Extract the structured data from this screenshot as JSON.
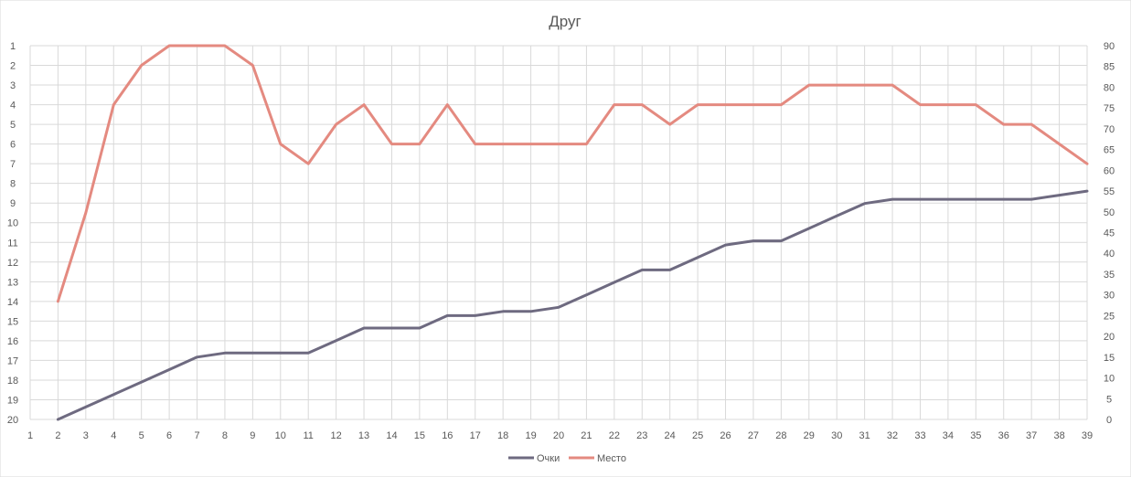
{
  "chart_data": {
    "type": "line",
    "title": "Друг",
    "x": [
      2,
      3,
      4,
      5,
      6,
      7,
      8,
      9,
      10,
      11,
      12,
      13,
      14,
      15,
      16,
      17,
      18,
      19,
      20,
      21,
      22,
      23,
      24,
      25,
      26,
      27,
      28,
      29,
      30,
      31,
      32,
      33,
      34,
      35,
      36,
      37,
      38,
      39
    ],
    "x_ticks": [
      "1",
      "2",
      "3",
      "4",
      "5",
      "6",
      "7",
      "8",
      "9",
      "10",
      "11",
      "12",
      "13",
      "14",
      "15",
      "16",
      "17",
      "18",
      "19",
      "20",
      "21",
      "22",
      "23",
      "24",
      "25",
      "26",
      "27",
      "28",
      "29",
      "30",
      "31",
      "32",
      "33",
      "34",
      "35",
      "36",
      "37",
      "38",
      "39"
    ],
    "xlim": [
      1,
      39
    ],
    "left_axis": {
      "ticks": [
        "1",
        "2",
        "3",
        "4",
        "5",
        "6",
        "7",
        "8",
        "9",
        "10",
        "11",
        "12",
        "13",
        "14",
        "15",
        "16",
        "17",
        "18",
        "19",
        "20"
      ],
      "ylim": [
        1,
        20
      ],
      "reversed": true
    },
    "right_axis": {
      "ticks": [
        "0",
        "5",
        "10",
        "15",
        "20",
        "25",
        "30",
        "35",
        "40",
        "45",
        "50",
        "55",
        "60",
        "65",
        "70",
        "75",
        "80",
        "85",
        "90"
      ],
      "ylim": [
        0,
        90
      ]
    },
    "series": [
      {
        "name": "Очки",
        "axis": "right",
        "color": "#6e6a80",
        "values": [
          0,
          3,
          6,
          9,
          12,
          15,
          16,
          16,
          16,
          16,
          19,
          22,
          22,
          22,
          25,
          25,
          26,
          26,
          27,
          30,
          33,
          36,
          36,
          39,
          42,
          43,
          43,
          46,
          49,
          52,
          53,
          53,
          53,
          53,
          53,
          53,
          54,
          55
        ]
      },
      {
        "name": "Место",
        "axis": "left",
        "color": "#e48a80",
        "values": [
          14,
          9.5,
          4,
          2,
          1,
          1,
          1,
          2,
          6,
          7,
          5,
          4,
          6,
          6,
          4,
          6,
          6,
          6,
          6,
          6,
          4,
          4,
          5,
          4,
          4,
          4,
          4,
          3,
          3,
          3,
          3,
          4,
          4,
          4,
          5,
          5,
          6,
          7
        ]
      }
    ],
    "grid": true,
    "legend": "bottom"
  }
}
